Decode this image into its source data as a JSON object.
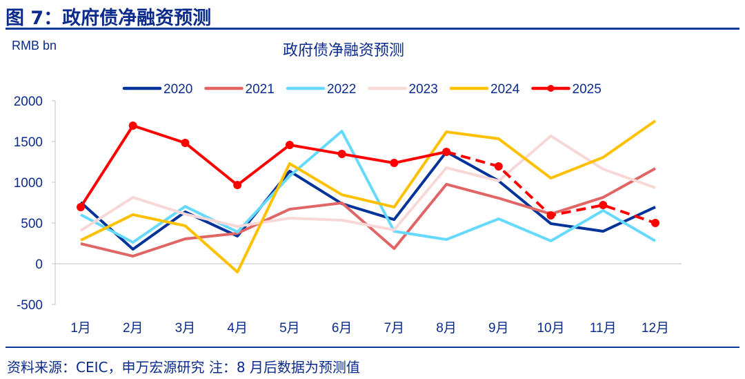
{
  "figure_title": "图 7：政府债净融资预测",
  "source": "资料来源：CEIC，申万宏源研究 注：8 月后数据为预测值",
  "chart_data": {
    "type": "line",
    "title": "政府债净融资预测",
    "ylabel": "RMB bn",
    "xlabel": "",
    "categories": [
      "1月",
      "2月",
      "3月",
      "4月",
      "5月",
      "6月",
      "7月",
      "8月",
      "9月",
      "10月",
      "11月",
      "12月"
    ],
    "ylim": [
      -500,
      2000
    ],
    "yticks": [
      "2000",
      "1500",
      "1000",
      "500",
      "0",
      "-500"
    ],
    "grid": false,
    "legend": "top",
    "series": [
      {
        "name": "2020",
        "color": "#003399",
        "values": [
          754,
          178,
          636,
          339,
          1136,
          737,
          542,
          1373,
          1017,
          492,
          398,
          695
        ]
      },
      {
        "name": "2021",
        "color": "#e06666",
        "values": [
          246,
          93,
          305,
          373,
          669,
          746,
          186,
          975,
          805,
          610,
          814,
          1169
        ]
      },
      {
        "name": "2022",
        "color": "#66d9ff",
        "values": [
          602,
          263,
          703,
          390,
          1076,
          1627,
          398,
          297,
          551,
          280,
          653,
          280
        ]
      },
      {
        "name": "2023",
        "color": "#f8d7d7",
        "values": [
          407,
          814,
          610,
          458,
          559,
          534,
          415,
          1178,
          1017,
          1568,
          1161,
          932
        ]
      },
      {
        "name": "2024",
        "color": "#ffc000",
        "values": [
          288,
          602,
          466,
          -102,
          1229,
          847,
          695,
          1619,
          1534,
          1051,
          1305,
          1754
        ]
      },
      {
        "name": "2025",
        "color": "#ff0000",
        "markers": true,
        "forecast_start": "8月",
        "values": [
          695,
          1695,
          1483,
          966,
          1458,
          1347,
          1237,
          1373,
          1195,
          593,
          720,
          500
        ]
      }
    ]
  }
}
